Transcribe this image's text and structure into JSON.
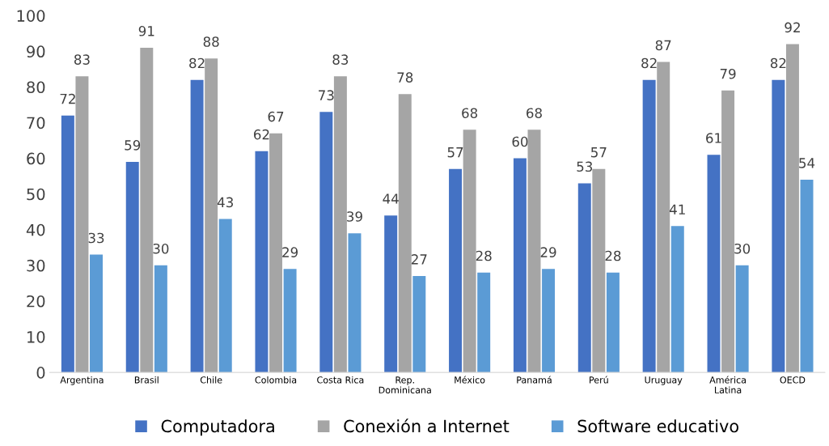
{
  "chart_data": {
    "type": "bar",
    "categories": [
      "Argentina",
      "Brasil",
      "Chile",
      "Colombia",
      "Costa Rica",
      "Rep.\nDominicana",
      "México",
      "Panamá",
      "Perú",
      "Uruguay",
      "América\nLatina",
      "OECD"
    ],
    "series": [
      {
        "name": "Computadora",
        "color": "#4472c4",
        "values": [
          72,
          59,
          82,
          62,
          73,
          44,
          57,
          60,
          53,
          82,
          61,
          82
        ]
      },
      {
        "name": "Conexión a Internet",
        "color": "#a5a5a5",
        "values": [
          83,
          91,
          88,
          67,
          83,
          78,
          68,
          68,
          57,
          87,
          79,
          92
        ]
      },
      {
        "name": "Software educativo",
        "color": "#5b9bd5",
        "values": [
          33,
          30,
          43,
          29,
          39,
          27,
          28,
          29,
          28,
          41,
          30,
          54
        ]
      }
    ],
    "ylim": [
      0,
      100
    ],
    "yticks": [
      0,
      10,
      20,
      30,
      40,
      50,
      60,
      70,
      80,
      90,
      100
    ],
    "data_labels": true,
    "legend": "bottom",
    "grid": false
  }
}
